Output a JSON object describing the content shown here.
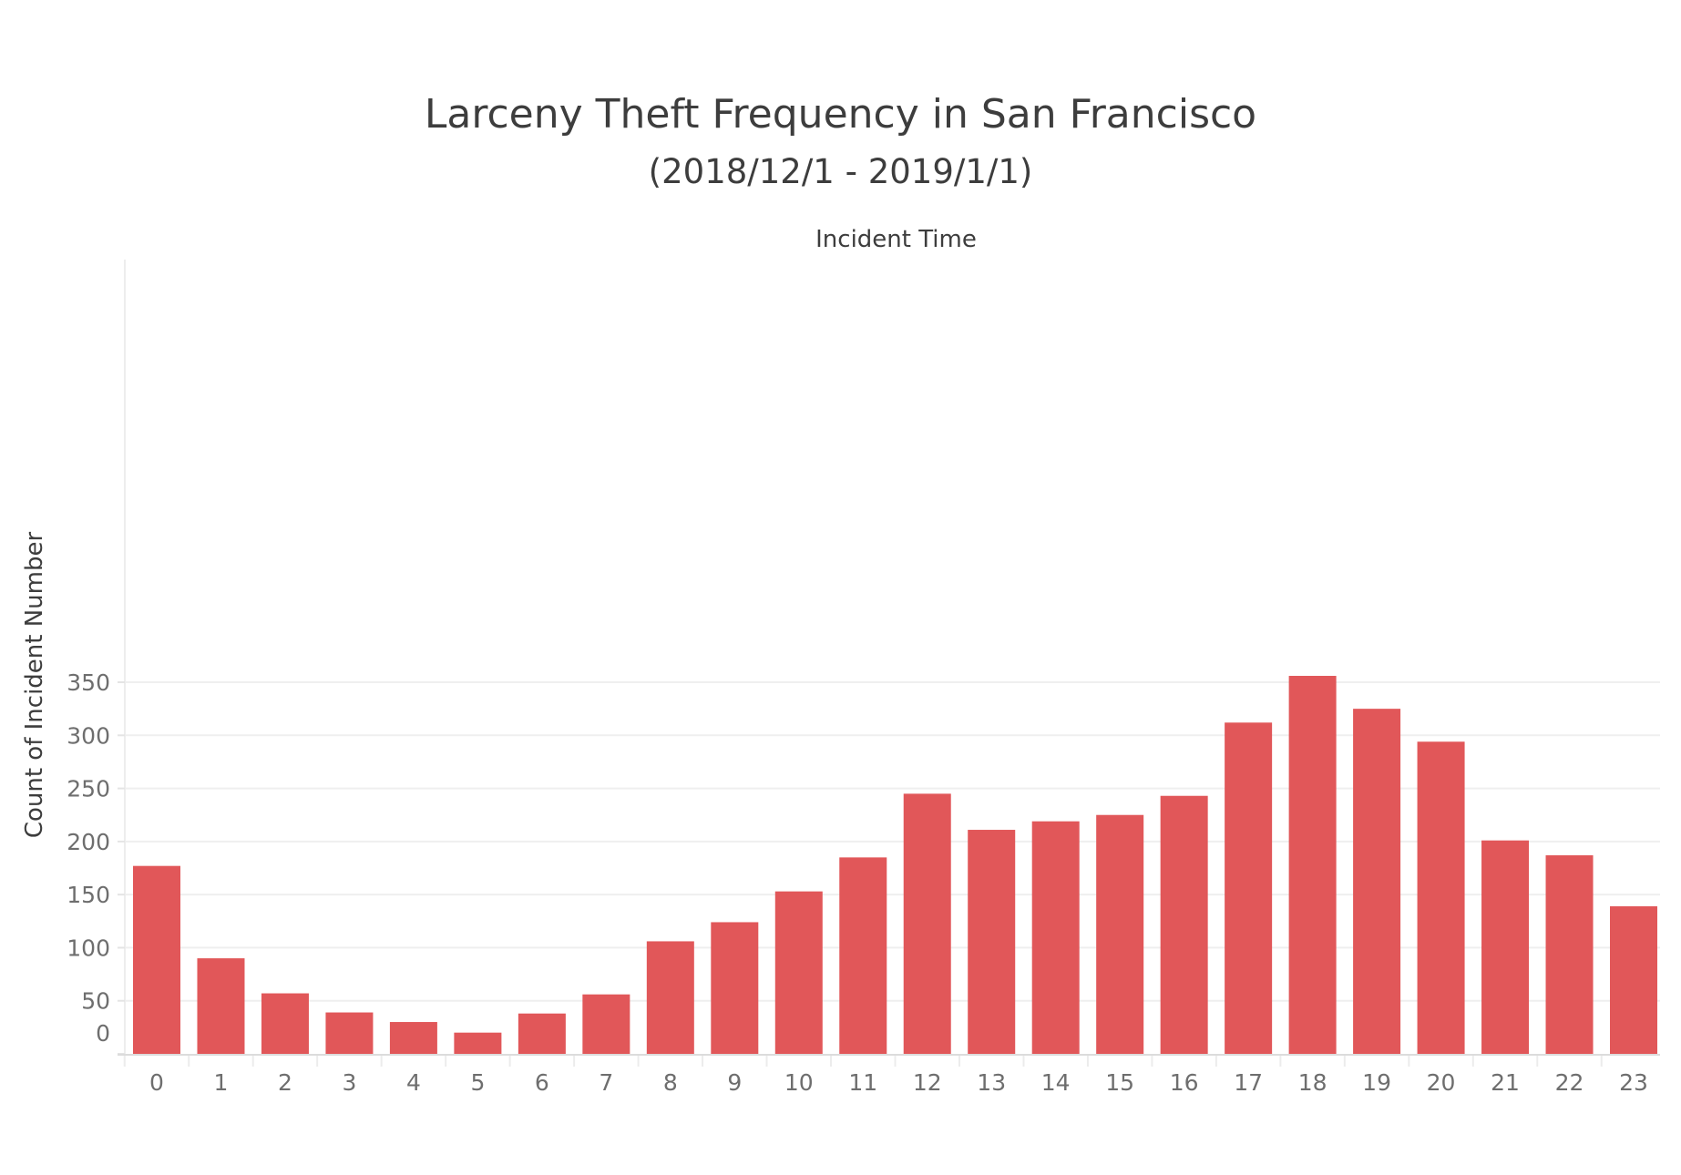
{
  "chart_data": {
    "type": "bar",
    "title": "Larceny Theft Frequency in San Francisco",
    "subtitle": "(2018/12/1 - 2019/1/1)",
    "xlabel": "Incident Time",
    "ylabel": "Count of Incident Number",
    "categories": [
      "0",
      "1",
      "2",
      "3",
      "4",
      "5",
      "6",
      "7",
      "8",
      "9",
      "10",
      "11",
      "12",
      "13",
      "14",
      "15",
      "16",
      "17",
      "18",
      "19",
      "20",
      "21",
      "22",
      "23"
    ],
    "values": [
      177,
      90,
      57,
      39,
      30,
      20,
      38,
      56,
      106,
      124,
      153,
      185,
      245,
      211,
      219,
      225,
      243,
      312,
      356,
      325,
      294,
      201,
      187,
      139
    ],
    "ylim": [
      0,
      375
    ],
    "yticks": [
      0,
      50,
      100,
      150,
      200,
      250,
      300,
      350
    ],
    "grid": true,
    "bar_color": "#e15759"
  }
}
